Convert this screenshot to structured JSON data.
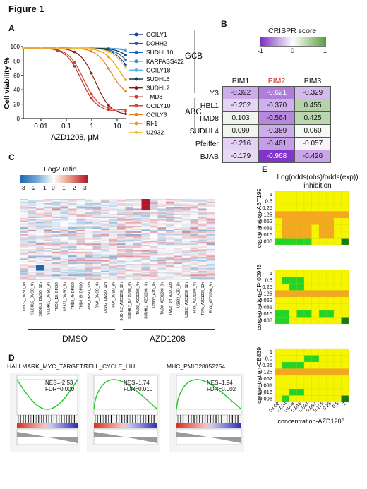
{
  "figure_title": "Figure 1",
  "panels": {
    "A": "A",
    "B": "B",
    "C": "C",
    "D": "D",
    "E": "E"
  },
  "panelA": {
    "ylabel": "Cell viability %",
    "xlabel": "AZD1208, μM",
    "xticks": [
      "0.01",
      "0.1",
      "1",
      "10"
    ],
    "yticks": [
      "0",
      "20",
      "40",
      "60",
      "80",
      "100"
    ],
    "group_gcb": "GCB",
    "group_abc": "ABC",
    "lines": [
      {
        "name": "OCILY1",
        "color": "#1f3f8f"
      },
      {
        "name": "DOHH2",
        "color": "#2457b8"
      },
      {
        "name": "SUDHL10",
        "color": "#1565c0"
      },
      {
        "name": "KARPASS422",
        "color": "#2b8fd6"
      },
      {
        "name": "OCILY18",
        "color": "#56b4e9"
      },
      {
        "name": "SUDHL6",
        "color": "#1b3a4b"
      },
      {
        "name": "SUDHL2",
        "color": "#8b1a1a"
      },
      {
        "name": "TMD8",
        "color": "#c0392b"
      },
      {
        "name": "OCILY10",
        "color": "#d4443a"
      },
      {
        "name": "OCILY3",
        "color": "#e67e22"
      },
      {
        "name": "RI-1",
        "color": "#f39c12"
      },
      {
        "name": "U2932",
        "color": "#f5c242"
      }
    ]
  },
  "panelB": {
    "legend_title": "CRISPR score",
    "legend_ticks": [
      "-1",
      "0",
      "1"
    ],
    "columns": [
      "PIM1",
      "PIM2",
      "PIM3"
    ],
    "highlight_color": "#d62728",
    "rows": [
      {
        "label": "LY3",
        "values": [
          "-0.392",
          "-0.621",
          "-0.329"
        ]
      },
      {
        "label": "HBL1",
        "values": [
          "-0.202",
          "-0.370",
          "0.455"
        ]
      },
      {
        "label": "TMD8",
        "values": [
          "0.103",
          "-0.564",
          "0.425"
        ]
      },
      {
        "label": "SUDHL4",
        "values": [
          "0.099",
          "-0.389",
          "0.060"
        ]
      },
      {
        "label": "Pfeiffer",
        "values": [
          "-0.216",
          "-0.461",
          "-0.057"
        ]
      },
      {
        "label": "BJAB",
        "values": [
          "-0.179",
          "-0.968",
          "-0.426"
        ]
      }
    ]
  },
  "panelC": {
    "legend_title": "Log2 ratio",
    "legend_ticks": [
      "-3",
      "-2",
      "-1",
      "0",
      "1",
      "2",
      "3"
    ],
    "columns": [
      "U2932_DMSO_4h",
      "SUDHL2_DMSO_4h",
      "SUDHL2_DMSO_12h",
      "SUDHL2_DMSO_8h",
      "TMD8_12h DMSO",
      "U2932_DMSO_8h",
      "TMD8_4h DMSO",
      "TMD8_8h DMSO",
      "RIVA_DMSO_12h",
      "RIVA_DMSO_4h",
      "U2932_DMSO_12h",
      "RIVA_DMSO_8h",
      "SUDHL2_AZD1208_12h",
      "SUDHL2_AZD1208_8h",
      "TMD8_AZD1208_4h",
      "SUDHL2_AZD1208_4h",
      "U2932_AZD_4h",
      "TMD8_AZD1208_8h",
      "TMD8_8H_AZD1208",
      "U2932_AZD_8h",
      "U2932_AZD1208_12h",
      "RIVA_AZD1208_4h",
      "RIVA_AZD1208_12h",
      "RIVA_AZD1208_8h"
    ],
    "group_dmso": "DMSO",
    "group_azd": "AZD1208"
  },
  "panelD": {
    "plots": [
      {
        "title": "HALLMARK_MYC_TARGETS",
        "nes": "NES=-2.53",
        "fdr": "FDR=0.000"
      },
      {
        "title": "CELL_CYCLE_LIU",
        "nes": "NES=1.74",
        "fdr": "FDR=0.010"
      },
      {
        "title": "MHC_PMID28052254",
        "nes": "NES=1.94",
        "fdr": "FDR=0.002"
      }
    ]
  },
  "panelE": {
    "title_line1": "Log(odds(obs)/odds(exp))",
    "title_line2": "inhibition",
    "row_ticks": [
      "1",
      "0.5",
      "0.25",
      "0.125",
      "0.062",
      "0.031",
      "0.016",
      "0.008"
    ],
    "col_ticks": [
      "0.002",
      "0.004",
      "0.008",
      "0.016",
      "0.031",
      "0.062",
      "0.125",
      "0.25",
      "0.5",
      "1"
    ],
    "xlabel": "concentration-AZD1208",
    "heatmaps": [
      {
        "ylabel": "concentration-ABT199"
      },
      {
        "ylabel": "concentration-CF400945"
      },
      {
        "ylabel": "concentration-CB839"
      }
    ],
    "colors": {
      "y": "#f5f500",
      "o": "#f5a623",
      "g": "#22d42a",
      "d": "#167a1c"
    }
  }
}
